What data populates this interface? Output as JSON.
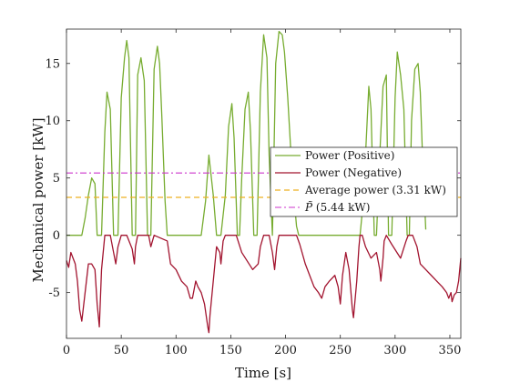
{
  "chart_data": {
    "type": "line",
    "xlabel": "Time [s]",
    "ylabel": "Mechanical power [kW]",
    "xlim": [
      0,
      360
    ],
    "ylim": [
      -9,
      18
    ],
    "xticks": [
      0,
      50,
      100,
      150,
      200,
      250,
      300,
      350
    ],
    "xtick_labels": [
      "0",
      "50",
      "100",
      "150",
      "200",
      "250",
      "300",
      "350"
    ],
    "yticks": [
      -5,
      0,
      5,
      10,
      15
    ],
    "ytick_labels": [
      "-5",
      "0",
      "5",
      "10",
      "15"
    ],
    "grid": false,
    "box": true,
    "legend_position": "right, upper-middle",
    "colors": {
      "positive": "#77ac30",
      "negative": "#a2142f",
      "average": "#edb120",
      "ptilde": "#cc33cc",
      "axes": "#262626"
    },
    "series": [
      {
        "name": "Power (Positive)",
        "style": "solid",
        "x": [
          0,
          14,
          17,
          20,
          23,
          26,
          28,
          32,
          35,
          37,
          40,
          43,
          47,
          50,
          53,
          55,
          57,
          60,
          63,
          65,
          68,
          71,
          74,
          77,
          80,
          83,
          85,
          87,
          90,
          92,
          123,
          127,
          130,
          134,
          137,
          141,
          145,
          148,
          151,
          153,
          156,
          158,
          160,
          163,
          166,
          168,
          171,
          174,
          177,
          180,
          183,
          185,
          188,
          191,
          194,
          197,
          199,
          202,
          205,
          208,
          210,
          212,
          268,
          270,
          273,
          276,
          278,
          281,
          283,
          286,
          289,
          292,
          294,
          297,
          300,
          302,
          305,
          308,
          311,
          313,
          315,
          318,
          321,
          323,
          325,
          328
        ],
        "y": [
          0,
          0,
          1.5,
          3.5,
          5.0,
          4.5,
          0,
          0,
          9.0,
          12.5,
          11.0,
          0,
          0,
          12.0,
          15.5,
          17.0,
          15.5,
          0,
          0,
          14.0,
          15.5,
          13.5,
          0,
          0,
          14.5,
          16.5,
          15.0,
          10.5,
          3.0,
          0,
          0,
          3.0,
          7.0,
          3.5,
          0,
          0,
          3.5,
          9.5,
          11.5,
          8.5,
          0,
          0,
          5.0,
          11.0,
          12.5,
          9.0,
          0,
          0,
          12.5,
          17.5,
          15.5,
          7.0,
          0,
          15.0,
          17.8,
          17.5,
          16.0,
          12.0,
          7.0,
          3.0,
          0.8,
          0,
          0,
          2.0,
          7.0,
          13.0,
          11.0,
          0,
          0,
          7.0,
          13.0,
          14.0,
          0,
          0,
          12.0,
          16.0,
          14.0,
          11.0,
          0,
          0,
          10.0,
          14.5,
          15.0,
          12.5,
          7.0,
          0.5
        ]
      },
      {
        "name": "Power (Negative)",
        "style": "solid",
        "x": [
          0,
          2,
          4,
          6,
          8,
          10,
          12,
          14,
          17,
          20,
          23,
          26,
          28,
          30,
          32,
          35,
          40,
          43,
          45,
          47,
          50,
          55,
          60,
          62,
          63,
          65,
          75,
          77,
          80,
          92,
          95,
          100,
          105,
          110,
          113,
          115,
          118,
          120,
          123,
          126,
          129,
          130,
          131,
          133,
          137,
          140,
          141,
          142,
          143,
          145,
          155,
          160,
          170,
          175,
          177,
          180,
          185,
          188,
          190,
          192,
          194,
          210,
          213,
          218,
          222,
          226,
          230,
          233,
          236,
          240,
          245,
          248,
          250,
          252,
          255,
          258,
          261,
          262,
          265,
          267,
          268,
          270,
          273,
          278,
          283,
          286,
          287,
          288,
          289,
          290,
          292,
          297,
          305,
          310,
          312,
          316,
          320,
          323,
          328,
          333,
          338,
          343,
          347,
          349,
          351,
          352,
          354,
          356,
          358,
          360
        ],
        "y": [
          -2.2,
          -2.8,
          -1.5,
          -2.0,
          -2.5,
          -4.0,
          -6.5,
          -7.5,
          -5.0,
          -2.5,
          -2.5,
          -3.0,
          -6.0,
          -8.0,
          -3.0,
          0,
          0,
          -1.5,
          -2.5,
          -1.0,
          0,
          0,
          -1.2,
          -2.5,
          -1.0,
          0,
          0,
          -1.0,
          0,
          -0.5,
          -2.5,
          -3.0,
          -4.0,
          -4.5,
          -5.5,
          -5.5,
          -4.0,
          -4.5,
          -5.0,
          -6.0,
          -8.0,
          -8.5,
          -7.0,
          -5.0,
          -1.0,
          -1.5,
          -2.5,
          -1.5,
          -0.5,
          0,
          0,
          -1.5,
          -3.0,
          -2.5,
          -1.0,
          0,
          0,
          -1.5,
          -3.0,
          -1.0,
          0,
          0,
          -0.8,
          -2.5,
          -3.5,
          -4.5,
          -5.0,
          -5.5,
          -4.5,
          -4.0,
          -3.5,
          -4.5,
          -6.0,
          -3.5,
          -1.5,
          -3.0,
          -6.5,
          -7.2,
          -4.0,
          -1.0,
          0,
          0,
          -1.0,
          -2.0,
          -1.5,
          -3.0,
          -4.0,
          -3.0,
          -2.0,
          -0.5,
          0,
          -0.8,
          -2.0,
          -0.5,
          0,
          0,
          -1.0,
          -2.5,
          -3.0,
          -3.5,
          -4.0,
          -4.5,
          -5.0,
          -5.5,
          -5.0,
          -5.8,
          -5.2,
          -5.0,
          -4.0,
          -2.0
        ]
      },
      {
        "name": "Average power (3.31 kW)",
        "style": "dashed",
        "x": [
          0,
          360
        ],
        "y": [
          3.31,
          3.31
        ]
      },
      {
        "name": "P̃ (5.44 kW)",
        "style": "dashdot",
        "x": [
          0,
          360
        ],
        "y": [
          5.44,
          5.44
        ]
      }
    ],
    "legend": [
      {
        "label": "Power (Positive)"
      },
      {
        "label": "Power (Negative)"
      },
      {
        "label": "Average power (3.31 kW)"
      },
      {
        "label_symbol": "P̃",
        "label_rest": " (5.44 kW)"
      }
    ]
  }
}
